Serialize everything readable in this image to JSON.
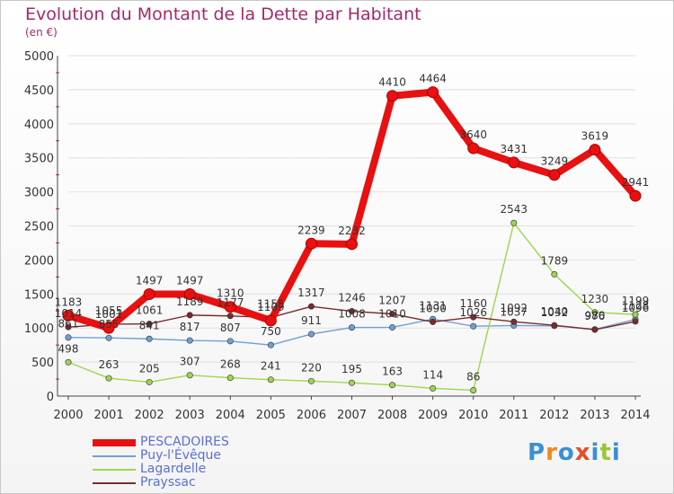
{
  "title": "Evolution du Montant de la Dette par Habitant",
  "subtitle": "(en €)",
  "logo": "Proxiti",
  "colors": {
    "title": "#a4286a",
    "legend_text": "#5b6fd6",
    "axis": "#444444",
    "grid": "#e0e0e0"
  },
  "chart_data": {
    "type": "line",
    "title": "Evolution du Montant de la Dette par Habitant",
    "subtitle": "(en €)",
    "xlabel": "",
    "ylabel": "",
    "categories": [
      "2000",
      "2001",
      "2002",
      "2003",
      "2004",
      "2005",
      "2006",
      "2007",
      "2008",
      "2009",
      "2010",
      "2011",
      "2012",
      "2013",
      "2014"
    ],
    "ylim": [
      0,
      5000
    ],
    "yticks": [
      0,
      500,
      1000,
      1500,
      2000,
      2500,
      3000,
      3500,
      4000,
      4500,
      5000
    ],
    "grid": true,
    "legend_position": "bottom-left",
    "series": [
      {
        "name": "PESCADOIRES",
        "color": "#e81010",
        "values": [
          1183,
          1001,
          1497,
          1497,
          1310,
          1109,
          2239,
          2232,
          4410,
          4464,
          3640,
          3431,
          3249,
          3619,
          2941
        ],
        "labels": [
          "1183",
          "1001",
          "1497",
          "1497",
          "1310",
          "1109",
          "2239",
          "2232",
          "4410",
          "4464",
          "3640",
          "3431",
          "3249",
          "3619",
          "2941"
        ]
      },
      {
        "name": "Puy-l'Évêque",
        "color": "#6fa0d4",
        "values": [
          861,
          855,
          841,
          817,
          807,
          750,
          911,
          1008,
          1010,
          1131,
          1026,
          1037,
          1032,
          980,
          1128
        ],
        "labels": [
          "861",
          "855",
          "841",
          "817",
          "807",
          "750",
          "911",
          "1008",
          "1010",
          "1131",
          "1026",
          "1037",
          "1032",
          "980",
          "1128"
        ]
      },
      {
        "name": "Lagardelle",
        "color": "#9cd64f",
        "values": [
          498,
          263,
          205,
          307,
          268,
          241,
          220,
          195,
          163,
          114,
          86,
          2543,
          1789,
          1230,
          1199
        ],
        "labels": [
          "498",
          "263",
          "205",
          "307",
          "268",
          "241",
          "220",
          "195",
          "163",
          "114",
          "86",
          "2543",
          "1789",
          "1230",
          "1199"
        ]
      },
      {
        "name": "Prayssac",
        "color": "#7a2a2a",
        "values": [
          1014,
          1055,
          1061,
          1189,
          1177,
          1155,
          1317,
          1246,
          1207,
          1090,
          1160,
          1092,
          1040,
          976,
          1096
        ],
        "labels": [
          "1014",
          "1055",
          "1061",
          "1189",
          "1177",
          "1155",
          "1317",
          "1246",
          "1207",
          "1090",
          "1160",
          "1092",
          "1040",
          "976",
          "1096"
        ]
      }
    ]
  }
}
